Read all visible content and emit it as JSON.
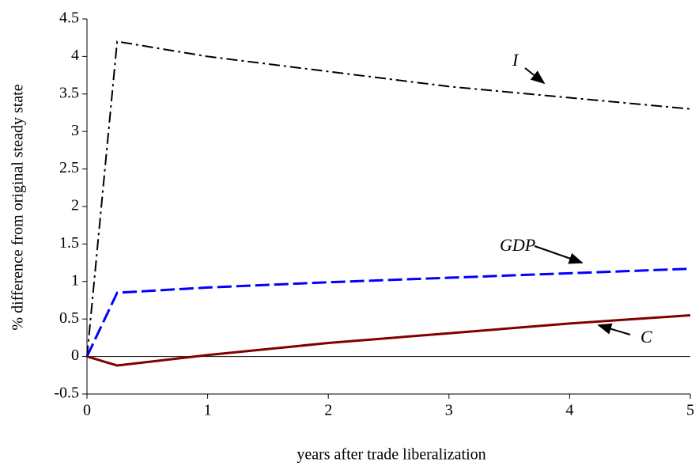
{
  "chart_data": {
    "type": "line",
    "xlabel": "years after trade liberalization",
    "ylabel": "% difference from original steady state",
    "x": [
      0,
      0.25,
      1,
      2,
      3,
      4,
      5
    ],
    "series": [
      {
        "name": "I",
        "color": "#000000",
        "dash": "dashdot",
        "values": [
          0,
          4.2,
          4.0,
          3.8,
          3.6,
          3.45,
          3.3
        ]
      },
      {
        "name": "GDP",
        "color": "#0000ff",
        "dash": "dashed",
        "values": [
          0,
          0.85,
          0.92,
          0.99,
          1.05,
          1.11,
          1.17
        ]
      },
      {
        "name": "C",
        "color": "#800000",
        "dash": "solid",
        "values": [
          0,
          -0.12,
          0.02,
          0.18,
          0.31,
          0.44,
          0.55
        ]
      }
    ],
    "xlim": [
      0,
      5
    ],
    "xticks": [
      0,
      1,
      2,
      3,
      4,
      5
    ],
    "ylim": [
      -0.5,
      4.5
    ],
    "yticks": [
      -0.5,
      0,
      0.5,
      1,
      1.5,
      2,
      2.5,
      3,
      3.5,
      4,
      4.5
    ]
  }
}
